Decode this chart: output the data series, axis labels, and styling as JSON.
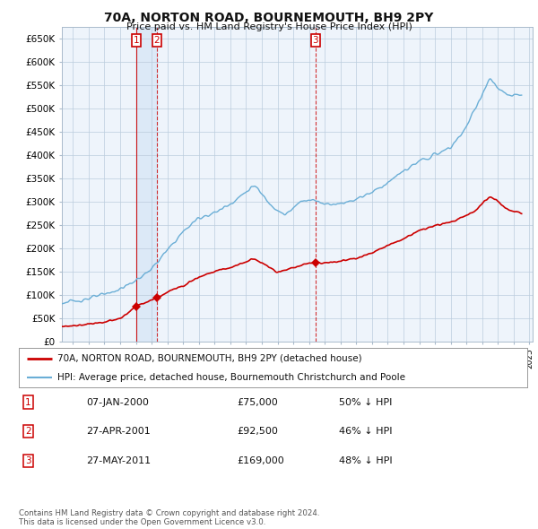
{
  "title": "70A, NORTON ROAD, BOURNEMOUTH, BH9 2PY",
  "subtitle": "Price paid vs. HM Land Registry's House Price Index (HPI)",
  "ylim": [
    0,
    675000
  ],
  "yticks": [
    0,
    50000,
    100000,
    150000,
    200000,
    250000,
    300000,
    350000,
    400000,
    450000,
    500000,
    550000,
    600000,
    650000
  ],
  "ytick_labels": [
    "£0",
    "£50K",
    "£100K",
    "£150K",
    "£200K",
    "£250K",
    "£300K",
    "£350K",
    "£400K",
    "£450K",
    "£500K",
    "£550K",
    "£600K",
    "£650K"
  ],
  "xlim_start": 1995.3,
  "xlim_end": 2025.2,
  "sale_dates": [
    2000.03,
    2001.32,
    2011.4
  ],
  "sale_prices": [
    75000,
    92500,
    169000
  ],
  "sale_labels": [
    "1",
    "2",
    "3"
  ],
  "hpi_color": "#6aaed6",
  "hpi_fill_color": "#ddeeff",
  "sale_color": "#cc0000",
  "legend_sale_label": "70A, NORTON ROAD, BOURNEMOUTH, BH9 2PY (detached house)",
  "legend_hpi_label": "HPI: Average price, detached house, Bournemouth Christchurch and Poole",
  "table_rows": [
    [
      "1",
      "07-JAN-2000",
      "£75,000",
      "50% ↓ HPI"
    ],
    [
      "2",
      "27-APR-2001",
      "£92,500",
      "46% ↓ HPI"
    ],
    [
      "3",
      "27-MAY-2011",
      "£169,000",
      "48% ↓ HPI"
    ]
  ],
  "footer": "Contains HM Land Registry data © Crown copyright and database right 2024.\nThis data is licensed under the Open Government Licence v3.0.",
  "background_color": "#ffffff",
  "chart_bg_color": "#eef4fb",
  "grid_color": "#bbccdd"
}
